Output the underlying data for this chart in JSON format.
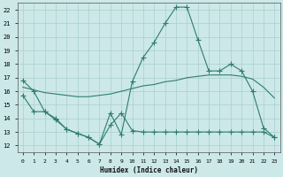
{
  "xlabel": "Humidex (Indice chaleur)",
  "xlim": [
    -0.5,
    23.5
  ],
  "ylim": [
    11.5,
    22.5
  ],
  "yticks": [
    12,
    13,
    14,
    15,
    16,
    17,
    18,
    19,
    20,
    21,
    22
  ],
  "xticks": [
    0,
    1,
    2,
    3,
    4,
    5,
    6,
    7,
    8,
    9,
    10,
    11,
    12,
    13,
    14,
    15,
    16,
    17,
    18,
    19,
    20,
    21,
    22,
    23
  ],
  "bg_color": "#cce8e8",
  "line_color": "#2e7d6e",
  "grid_color": "#aacfcf",
  "line1_x": [
    0,
    1,
    2,
    3,
    4,
    5,
    6,
    7,
    8,
    9,
    10,
    11,
    12,
    13,
    14,
    15,
    16,
    17,
    18,
    19,
    20,
    21,
    22,
    23
  ],
  "line1_y": [
    16.8,
    16.0,
    14.5,
    13.9,
    13.2,
    12.9,
    12.6,
    12.1,
    14.4,
    12.8,
    16.7,
    18.5,
    19.6,
    21.0,
    22.2,
    22.2,
    19.8,
    17.5,
    17.5,
    18.0,
    17.5,
    16.0,
    13.3,
    12.6
  ],
  "line2_x": [
    0,
    1,
    2,
    3,
    4,
    5,
    6,
    7,
    8,
    9,
    10,
    11,
    12,
    13,
    14,
    15,
    16,
    17,
    18,
    19,
    20,
    21,
    22,
    23
  ],
  "line2_y": [
    16.3,
    16.1,
    15.9,
    15.8,
    15.7,
    15.6,
    15.6,
    15.7,
    15.8,
    16.0,
    16.2,
    16.4,
    16.5,
    16.7,
    16.8,
    17.0,
    17.1,
    17.2,
    17.2,
    17.2,
    17.1,
    16.9,
    16.3,
    15.5
  ],
  "line3_x": [
    0,
    1,
    2,
    3,
    4,
    5,
    6,
    7,
    8,
    9,
    10,
    11,
    12,
    13,
    14,
    15,
    16,
    17,
    18,
    19,
    20,
    21,
    22,
    23
  ],
  "line3_y": [
    15.7,
    14.5,
    14.5,
    14.0,
    13.2,
    12.9,
    12.6,
    12.1,
    13.5,
    14.4,
    13.1,
    13.0,
    13.0,
    13.0,
    13.0,
    13.0,
    13.0,
    13.0,
    13.0,
    13.0,
    13.0,
    13.0,
    13.0,
    12.6
  ]
}
